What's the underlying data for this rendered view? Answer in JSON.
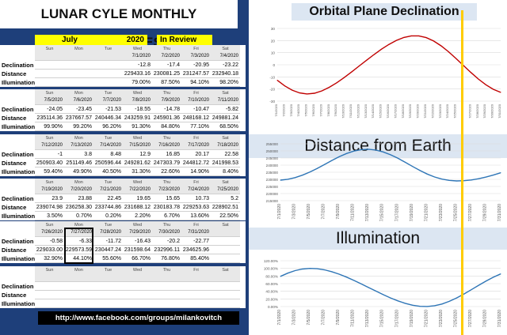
{
  "header": {
    "title": "LUNAR CYLE MONTHLY PROPERTIES",
    "month": "July",
    "year": "2020",
    "status": "In Review",
    "footer_link": "http://www.facebook.com/groups/milankovitch"
  },
  "days": [
    "Sun",
    "Mon",
    "Tue",
    "Wed",
    "Thu",
    "Fri",
    "Sat"
  ],
  "row_labels": [
    "Declination",
    "Distance",
    "Illumination"
  ],
  "weeks": [
    {
      "dates": [
        "",
        "",
        "",
        "7/1/2020",
        "7/2/2020",
        "7/3/2020",
        "7/4/2020"
      ],
      "declination": [
        "",
        "",
        "",
        "-12.8",
        "-17.4",
        "-20.95",
        "-23.22"
      ],
      "distance": [
        "",
        "",
        "",
        "229433.16",
        "230081.25",
        "231247.57",
        "232940.18"
      ],
      "illumination": [
        "",
        "",
        "",
        "79.00%",
        "87.50%",
        "94.10%",
        "98.20%"
      ]
    },
    {
      "dates": [
        "7/5/2020",
        "7/6/2020",
        "7/7/2020",
        "7/8/2020",
        "7/9/2020",
        "7/10/2020",
        "7/11/2020"
      ],
      "declination": [
        "-24.05",
        "-23.45",
        "-21.53",
        "-18.55",
        "-14.78",
        "-10.47",
        "-5.82"
      ],
      "distance": [
        "235114.36",
        "237667.57",
        "240446.34",
        "243259.91",
        "245901.36",
        "248168.12",
        "249881.24"
      ],
      "illumination": [
        "99.90%",
        "99.20%",
        "96.20%",
        "91.30%",
        "84.80%",
        "77.10%",
        "68.50%"
      ]
    },
    {
      "dates": [
        "7/12/2020",
        "7/13/2020",
        "7/14/2020",
        "7/15/2020",
        "7/16/2020",
        "7/17/2020",
        "7/18/2020"
      ],
      "declination": [
        "-1",
        "3.8",
        "8.48",
        "12.9",
        "16.85",
        "20.17",
        "22.58"
      ],
      "distance": [
        "250903.40",
        "251149.46",
        "250596.44",
        "249281.62",
        "247303.79",
        "244812.72",
        "241998.53"
      ],
      "illumination": [
        "59.40%",
        "49.90%",
        "40.50%",
        "31.30%",
        "22.60%",
        "14.90%",
        "8.40%"
      ]
    },
    {
      "dates": [
        "7/19/2020",
        "7/20/2020",
        "7/21/2020",
        "7/22/2020",
        "7/23/2020",
        "7/24/2020",
        "7/25/2020"
      ],
      "declination": [
        "23.9",
        "23.88",
        "22.45",
        "19.65",
        "15.65",
        "10.73",
        "5.2"
      ],
      "distance": [
        "239074.98",
        "236258.30",
        "233744.86",
        "231688.12",
        "230183.78",
        "229253.63",
        "228902.51"
      ],
      "illumination": [
        "3.50%",
        "0.70%",
        "0.20%",
        "2.20%",
        "6.70%",
        "13.60%",
        "22.50%"
      ]
    },
    {
      "dates": [
        "7/26/2020",
        "7/27/2020",
        "7/28/2020",
        "7/29/2020",
        "7/30/2020",
        "7/31/2020",
        ""
      ],
      "declination": [
        "-0.58",
        "-6.33",
        "-11.72",
        "-16.43",
        "-20.2",
        "-22.77",
        ""
      ],
      "distance": [
        "229033.00",
        "229573.59",
        "230447.24",
        "231598.64",
        "232996.11",
        "234625.96",
        ""
      ],
      "illumination": [
        "32.90%",
        "44.10%",
        "55.60%",
        "66.70%",
        "76.80%",
        "85.40%",
        ""
      ]
    },
    {
      "dates": [
        "",
        "",
        "",
        "",
        "",
        "",
        ""
      ],
      "declination": [
        "",
        "",
        "",
        "",
        "",
        "",
        ""
      ],
      "distance": [
        "",
        "",
        "",
        "",
        "",
        "",
        ""
      ],
      "illumination": [
        "",
        "",
        "",
        "",
        "",
        "",
        ""
      ]
    }
  ],
  "highlighted_date": "7/27/2020",
  "marker_date": "7/27/2020",
  "chart_data": [
    {
      "type": "line",
      "title": "Orbital Plane Declination",
      "x": [
        "7/1/2020",
        "7/2/2020",
        "7/3/2020",
        "7/4/2020",
        "7/5/2020",
        "7/6/2020",
        "7/7/2020",
        "7/8/2020",
        "7/9/2020",
        "7/10/2020",
        "7/11/2020",
        "7/12/2020",
        "7/13/2020",
        "7/14/2020",
        "7/15/2020",
        "7/16/2020",
        "7/17/2020",
        "7/18/2020",
        "7/19/2020",
        "7/20/2020",
        "7/21/2020",
        "7/22/2020",
        "7/23/2020",
        "7/24/2020",
        "7/25/2020",
        "7/26/2020",
        "7/27/2020",
        "7/28/2020",
        "7/29/2020",
        "7/30/2020",
        "7/31/2020"
      ],
      "x_ticks": [
        "7/1/2020",
        "7/2/2020",
        "7/3/2020",
        "7/4/2020",
        "7/5/2020",
        "7/6/2020",
        "7/7/2020",
        "7/8/2020",
        "7/9/2020",
        "7/10/2020",
        "7/11/2020",
        "7/12/2020",
        "7/13/2020",
        "7/14/2020",
        "7/15/2020",
        "7/16/2020",
        "7/17/2020",
        "7/18/2020",
        "7/19/2020",
        "7/20/2020",
        "7/21/2020",
        "7/22/2020",
        "7/23/2020",
        "7/24/2020",
        "7/25/2020",
        "7/26/2020",
        "7/27/2020",
        "7/28/2020",
        "7/29/2020",
        "7/30/2020",
        "7/31/2020"
      ],
      "values": [
        -12.8,
        -17.4,
        -20.95,
        -23.22,
        -24.05,
        -23.45,
        -21.53,
        -18.55,
        -14.78,
        -10.47,
        -5.82,
        -1,
        3.8,
        8.48,
        12.9,
        16.85,
        20.17,
        22.58,
        23.9,
        23.88,
        22.45,
        19.65,
        15.65,
        10.73,
        5.2,
        -0.58,
        -6.33,
        -11.72,
        -16.43,
        -20.2,
        -22.77
      ],
      "yticks": [
        "30",
        "20",
        "10",
        "0",
        "-10",
        "-20",
        "-30"
      ],
      "ylim": [
        -30,
        30
      ],
      "color": "#c00000",
      "grid": true
    },
    {
      "type": "line",
      "title": "Distance from Earth",
      "x": [
        "7/1/2020",
        "7/2/2020",
        "7/3/2020",
        "7/4/2020",
        "7/5/2020",
        "7/6/2020",
        "7/7/2020",
        "7/8/2020",
        "7/9/2020",
        "7/10/2020",
        "7/11/2020",
        "7/12/2020",
        "7/13/2020",
        "7/14/2020",
        "7/15/2020",
        "7/16/2020",
        "7/17/2020",
        "7/18/2020",
        "7/19/2020",
        "7/20/2020",
        "7/21/2020",
        "7/22/2020",
        "7/23/2020",
        "7/24/2020",
        "7/25/2020",
        "7/26/2020",
        "7/27/2020",
        "7/28/2020",
        "7/29/2020",
        "7/30/2020",
        "7/31/2020"
      ],
      "x_ticks": [
        "7/1/2020",
        "7/3/2020",
        "7/5/2020",
        "7/7/2020",
        "7/9/2020",
        "7/11/2020",
        "7/13/2020",
        "7/15/2020",
        "7/17/2020",
        "7/19/2020",
        "7/21/2020",
        "7/23/2020",
        "7/25/2020",
        "7/27/2020",
        "7/29/2020",
        "7/31/2020"
      ],
      "values": [
        229433.16,
        230081.25,
        231247.57,
        232940.18,
        235114.36,
        237667.57,
        240446.34,
        243259.91,
        245901.36,
        248168.12,
        249881.24,
        250903.4,
        251149.46,
        250596.44,
        249281.62,
        247303.79,
        244812.72,
        241998.53,
        239074.98,
        236258.3,
        233744.86,
        231688.12,
        230183.78,
        229253.63,
        228902.51,
        229033.0,
        229573.59,
        230447.24,
        231598.64,
        232996.11,
        234625.96
      ],
      "yticks": [
        "255000",
        "250000",
        "245000",
        "240000",
        "235000",
        "230000",
        "225000",
        "220000",
        "215000"
      ],
      "ylim": [
        215000,
        255000
      ],
      "color": "#2e75b6",
      "grid": true
    },
    {
      "type": "line",
      "title": "Illumination",
      "x": [
        "7/1/2020",
        "7/2/2020",
        "7/3/2020",
        "7/4/2020",
        "7/5/2020",
        "7/6/2020",
        "7/7/2020",
        "7/8/2020",
        "7/9/2020",
        "7/10/2020",
        "7/11/2020",
        "7/12/2020",
        "7/13/2020",
        "7/14/2020",
        "7/15/2020",
        "7/16/2020",
        "7/17/2020",
        "7/18/2020",
        "7/19/2020",
        "7/20/2020",
        "7/21/2020",
        "7/22/2020",
        "7/23/2020",
        "7/24/2020",
        "7/25/2020",
        "7/26/2020",
        "7/27/2020",
        "7/28/2020",
        "7/29/2020",
        "7/30/2020",
        "7/31/2020"
      ],
      "x_ticks": [
        "7/1/2020",
        "7/3/2020",
        "7/5/2020",
        "7/7/2020",
        "7/9/2020",
        "7/11/2020",
        "7/13/2020",
        "7/15/2020",
        "7/17/2020",
        "7/19/2020",
        "7/21/2020",
        "7/23/2020",
        "7/25/2020",
        "7/27/2020",
        "7/29/2020",
        "7/31/2020"
      ],
      "values": [
        79.0,
        87.5,
        94.1,
        98.2,
        99.9,
        99.2,
        96.2,
        91.3,
        84.8,
        77.1,
        68.5,
        59.4,
        49.9,
        40.5,
        31.3,
        22.6,
        14.9,
        8.4,
        3.5,
        0.7,
        0.2,
        2.2,
        6.7,
        13.6,
        22.5,
        32.9,
        44.1,
        55.6,
        66.7,
        76.8,
        85.4
      ],
      "yticks": [
        "120.00%",
        "100.00%",
        "80.00%",
        "60.00%",
        "40.00%",
        "20.00%",
        "0.00%"
      ],
      "ylim": [
        0,
        120
      ],
      "color": "#2e75b6",
      "grid": true
    }
  ]
}
